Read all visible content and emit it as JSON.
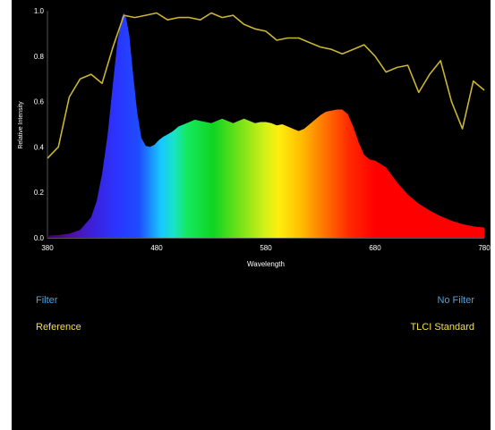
{
  "colors": {
    "background": "#000000",
    "axis_text": "#ffffff",
    "reference_line": "#c9b531",
    "control_blue": "#4aa3df",
    "control_yellow": "#f1e04a"
  },
  "controls": {
    "filter_label": "Filter",
    "no_filter_label": "No Filter",
    "reference_label": "Reference",
    "tlci_label": "TLCI Standard"
  },
  "chart_data": {
    "type": "area",
    "xlabel": "Wavelength",
    "ylabel": "Relative Intensity",
    "xlim": [
      380,
      780
    ],
    "ylim": [
      0,
      1.0
    ],
    "x_ticks": [
      380,
      480,
      580,
      680,
      780
    ],
    "y_ticks": [
      0.0,
      0.2,
      0.4,
      0.6,
      0.8,
      1.0
    ],
    "x_tick_labels": [
      "380",
      "480",
      "580",
      "680",
      "780"
    ],
    "y_tick_labels": [
      "0.0",
      "0.2",
      "0.4",
      "0.6",
      "0.8",
      "1.0"
    ],
    "grid": false,
    "series": [
      {
        "x": [
          380,
          390,
          400,
          410,
          420,
          425,
          430,
          435,
          440,
          444,
          448,
          450,
          452,
          455,
          458,
          462,
          466,
          470,
          474,
          478,
          482,
          486,
          490,
          495,
          500,
          505,
          510,
          515,
          520,
          525,
          530,
          535,
          540,
          545,
          550,
          555,
          560,
          565,
          570,
          575,
          580,
          585,
          590,
          595,
          600,
          605,
          610,
          615,
          620,
          625,
          630,
          635,
          640,
          645,
          650,
          655,
          660,
          665,
          670,
          675,
          680,
          690,
          700,
          710,
          720,
          730,
          740,
          750,
          760,
          770,
          780
        ],
        "y": [
          0.01,
          0.012,
          0.018,
          0.035,
          0.09,
          0.16,
          0.28,
          0.45,
          0.68,
          0.86,
          0.97,
          0.99,
          0.97,
          0.89,
          0.74,
          0.56,
          0.44,
          0.405,
          0.4,
          0.41,
          0.43,
          0.445,
          0.455,
          0.47,
          0.49,
          0.5,
          0.51,
          0.52,
          0.515,
          0.51,
          0.505,
          0.515,
          0.525,
          0.515,
          0.505,
          0.515,
          0.525,
          0.515,
          0.505,
          0.51,
          0.51,
          0.505,
          0.495,
          0.5,
          0.49,
          0.48,
          0.47,
          0.48,
          0.5,
          0.52,
          0.54,
          0.555,
          0.56,
          0.565,
          0.565,
          0.545,
          0.49,
          0.42,
          0.365,
          0.345,
          0.34,
          0.31,
          0.245,
          0.19,
          0.15,
          0.12,
          0.095,
          0.075,
          0.06,
          0.05,
          0.045
        ]
      },
      {
        "x": [
          380,
          390,
          400,
          410,
          420,
          430,
          440,
          450,
          460,
          470,
          480,
          490,
          500,
          510,
          520,
          530,
          540,
          550,
          560,
          570,
          580,
          590,
          600,
          610,
          620,
          630,
          640,
          650,
          660,
          670,
          680,
          690,
          700,
          710,
          720,
          730,
          740,
          750,
          760,
          770,
          780
        ],
        "y": [
          0.35,
          0.4,
          0.62,
          0.7,
          0.72,
          0.68,
          0.84,
          0.98,
          0.97,
          0.98,
          0.99,
          0.96,
          0.97,
          0.97,
          0.96,
          0.99,
          0.97,
          0.98,
          0.94,
          0.92,
          0.91,
          0.87,
          0.88,
          0.88,
          0.86,
          0.84,
          0.83,
          0.81,
          0.83,
          0.85,
          0.8,
          0.73,
          0.75,
          0.76,
          0.64,
          0.72,
          0.78,
          0.6,
          0.48,
          0.69,
          0.65
        ]
      }
    ]
  }
}
